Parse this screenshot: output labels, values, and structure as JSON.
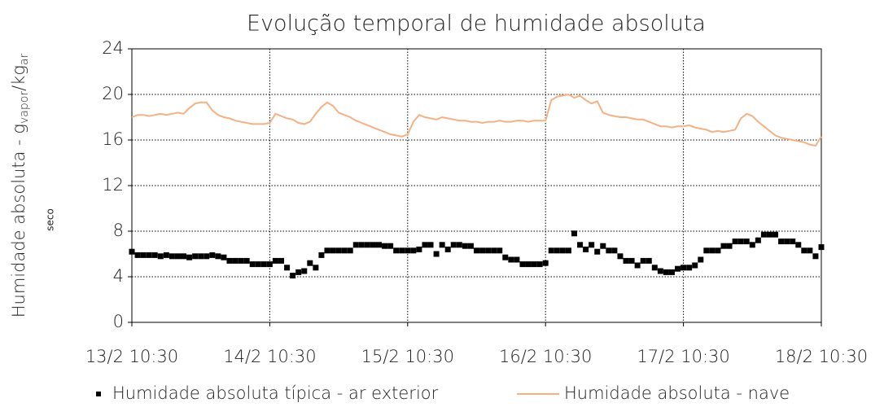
{
  "chart_data": {
    "type": "line",
    "title": "Evolução temporal de humidade absoluta",
    "y_label": {
      "main": "Humidade absoluta - g",
      "sub1": "vapor",
      "mid": "/kg",
      "sub2": "ar",
      "extra": "seco"
    },
    "categories": [
      "13/2 10:30",
      null,
      null,
      null,
      null,
      null,
      null,
      null,
      null,
      null,
      null,
      null,
      null,
      null,
      null,
      null,
      null,
      null,
      null,
      null,
      null,
      null,
      null,
      null,
      "14/2 10:30",
      null,
      null,
      null,
      null,
      null,
      null,
      null,
      null,
      null,
      null,
      null,
      null,
      null,
      null,
      null,
      null,
      null,
      null,
      null,
      null,
      null,
      null,
      null,
      "15/2 10:30",
      null,
      null,
      null,
      null,
      null,
      null,
      null,
      null,
      null,
      null,
      null,
      null,
      null,
      null,
      null,
      null,
      null,
      null,
      null,
      null,
      null,
      null,
      null,
      "16/2 10:30",
      null,
      null,
      null,
      null,
      null,
      null,
      null,
      null,
      null,
      null,
      null,
      null,
      null,
      null,
      null,
      null,
      null,
      null,
      null,
      null,
      null,
      null,
      null,
      "17/2 10:30",
      null,
      null,
      null,
      null,
      null,
      null,
      null,
      null,
      null,
      null,
      null,
      null,
      null,
      null,
      null,
      null,
      null,
      null,
      null,
      null,
      null,
      null,
      null,
      "18/2 10:30"
    ],
    "series": [
      {
        "name": "Humidade absoluta típica - ar exterior",
        "color": "#000000",
        "marker": "square",
        "values": [
          6.2,
          5.9,
          5.9,
          5.9,
          5.9,
          5.8,
          5.9,
          5.8,
          5.8,
          5.8,
          5.7,
          5.8,
          5.8,
          5.8,
          5.9,
          5.8,
          5.7,
          5.4,
          5.4,
          5.4,
          5.4,
          5.1,
          5.1,
          5.1,
          5.1,
          5.4,
          5.4,
          4.8,
          4.1,
          4.4,
          4.5,
          5.2,
          4.8,
          5.9,
          6.3,
          6.3,
          6.3,
          6.3,
          6.3,
          6.8,
          6.8,
          6.8,
          6.8,
          6.8,
          6.7,
          6.7,
          6.3,
          6.3,
          6.3,
          6.3,
          6.4,
          6.8,
          6.8,
          6.0,
          6.8,
          6.4,
          6.8,
          6.8,
          6.7,
          6.7,
          6.3,
          6.3,
          6.3,
          6.3,
          6.3,
          5.7,
          5.5,
          5.5,
          5.1,
          5.1,
          5.1,
          5.1,
          5.2,
          6.3,
          6.3,
          6.3,
          6.3,
          7.8,
          6.8,
          6.4,
          6.8,
          6.2,
          6.7,
          6.3,
          6.3,
          5.8,
          5.4,
          5.4,
          5.0,
          5.4,
          5.4,
          4.8,
          4.5,
          4.4,
          4.4,
          4.7,
          4.8,
          4.8,
          5.0,
          5.5,
          6.3,
          6.3,
          6.3,
          6.7,
          6.7,
          7.1,
          7.1,
          7.1,
          6.8,
          7.2,
          7.7,
          7.7,
          7.7,
          7.1,
          7.1,
          7.1,
          6.8,
          6.3,
          6.3,
          5.8,
          6.6
        ]
      },
      {
        "name": "Humidade absoluta - nave",
        "color": "#f4b183",
        "marker": "none",
        "values": [
          18.0,
          18.2,
          18.2,
          18.1,
          18.2,
          18.3,
          18.2,
          18.3,
          18.4,
          18.3,
          18.8,
          19.2,
          19.3,
          19.3,
          18.6,
          18.2,
          18.0,
          17.9,
          17.7,
          17.6,
          17.5,
          17.4,
          17.4,
          17.4,
          17.5,
          18.3,
          18.1,
          17.9,
          17.8,
          17.5,
          17.4,
          17.6,
          18.3,
          18.9,
          19.3,
          19.0,
          18.4,
          18.2,
          18.0,
          17.7,
          17.5,
          17.3,
          17.1,
          16.9,
          16.7,
          16.5,
          16.4,
          16.3,
          16.5,
          17.6,
          18.2,
          18.0,
          17.9,
          17.8,
          18.0,
          17.9,
          17.8,
          17.7,
          17.7,
          17.6,
          17.6,
          17.5,
          17.6,
          17.6,
          17.7,
          17.6,
          17.6,
          17.7,
          17.7,
          17.6,
          17.7,
          17.7,
          17.7,
          19.5,
          19.8,
          19.9,
          20.0,
          19.7,
          19.9,
          19.5,
          19.2,
          19.4,
          18.4,
          18.2,
          18.1,
          18.0,
          18.0,
          17.9,
          17.8,
          17.8,
          17.6,
          17.4,
          17.2,
          17.2,
          17.1,
          17.2,
          17.2,
          17.3,
          17.1,
          17.0,
          16.9,
          16.7,
          16.8,
          16.7,
          16.8,
          16.9,
          17.9,
          18.3,
          18.1,
          17.6,
          17.2,
          16.8,
          16.4,
          16.2,
          16.1,
          16.0,
          15.9,
          15.8,
          15.6,
          15.5,
          16.3
        ]
      }
    ],
    "ylim": [
      0,
      24
    ],
    "yticks": [
      0,
      4,
      8,
      12,
      16,
      20,
      24
    ],
    "grid": true,
    "legend": "bottom"
  }
}
